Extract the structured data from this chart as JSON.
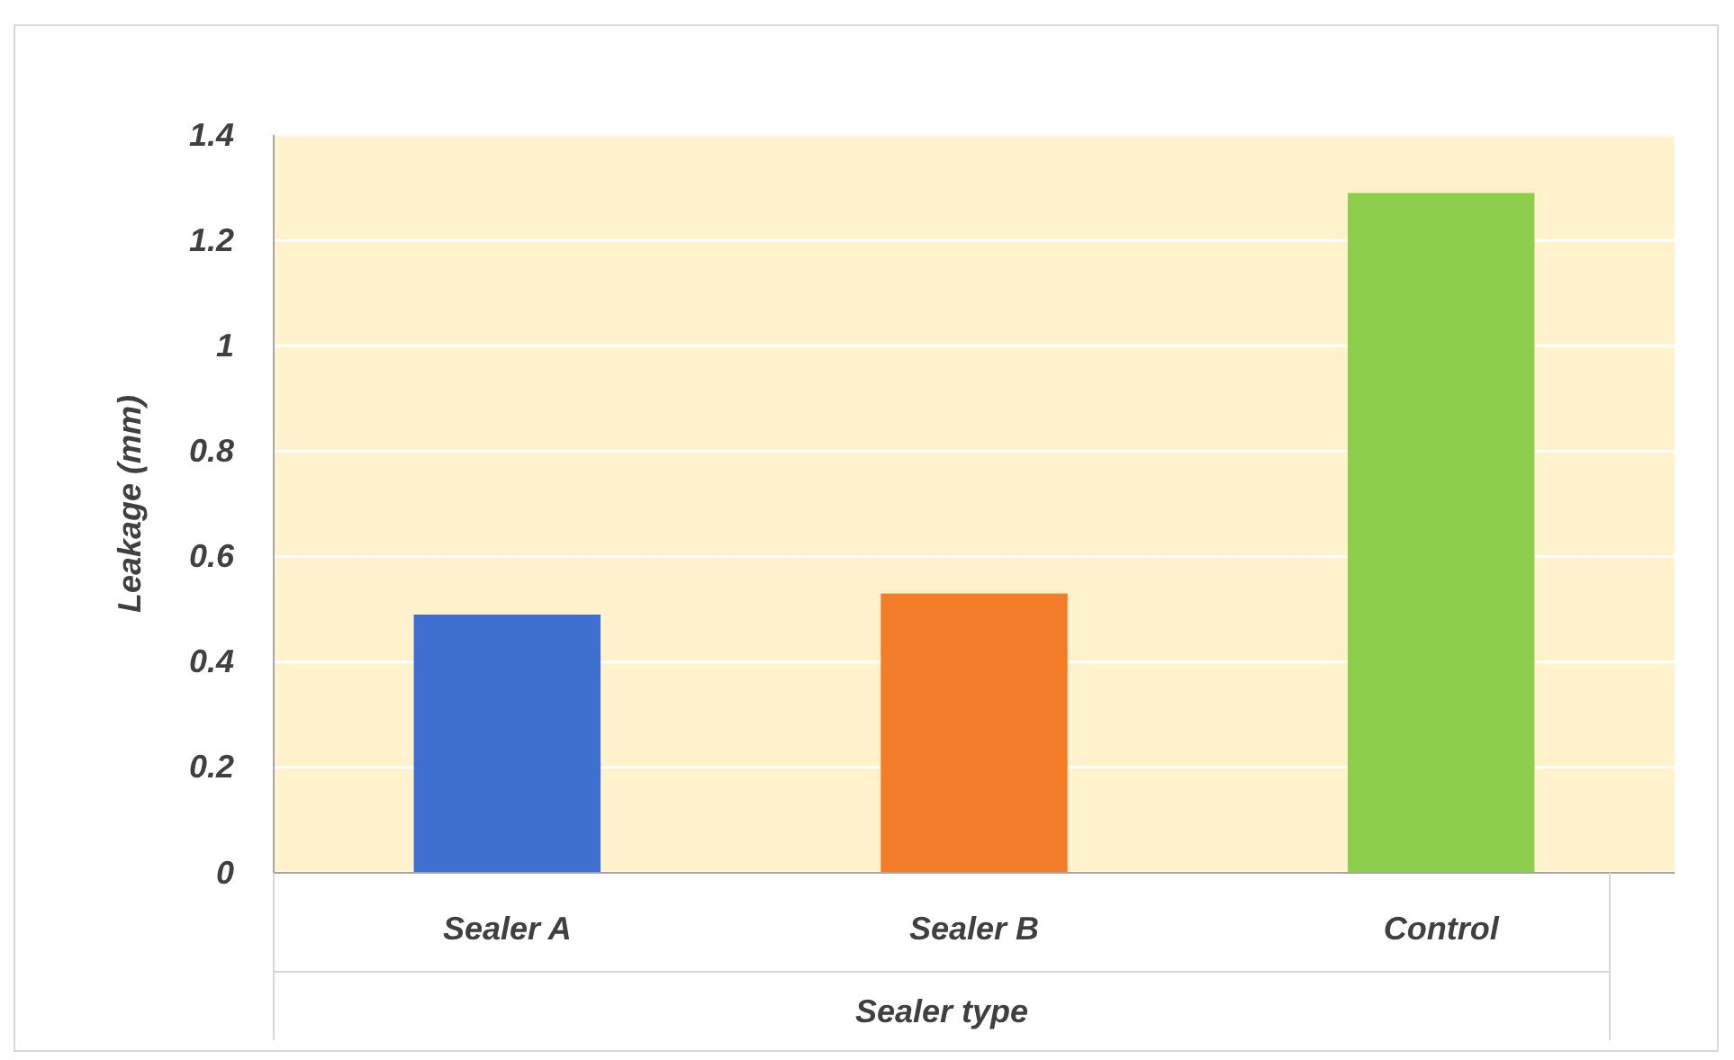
{
  "chart_data": {
    "type": "bar",
    "xlabel": "Sealer type",
    "ylabel": "Leakage (mm)",
    "categories": [
      "Sealer A",
      "Sealer B",
      "Control"
    ],
    "values": [
      0.49,
      0.53,
      1.29
    ],
    "colors": [
      "#3f6fd0",
      "#f47d2a",
      "#8dce4c"
    ],
    "ylim": [
      0,
      1.4
    ],
    "yticks": [
      0,
      0.2,
      0.4,
      0.6,
      0.8,
      1,
      1.2,
      1.4
    ],
    "grid": "y"
  }
}
